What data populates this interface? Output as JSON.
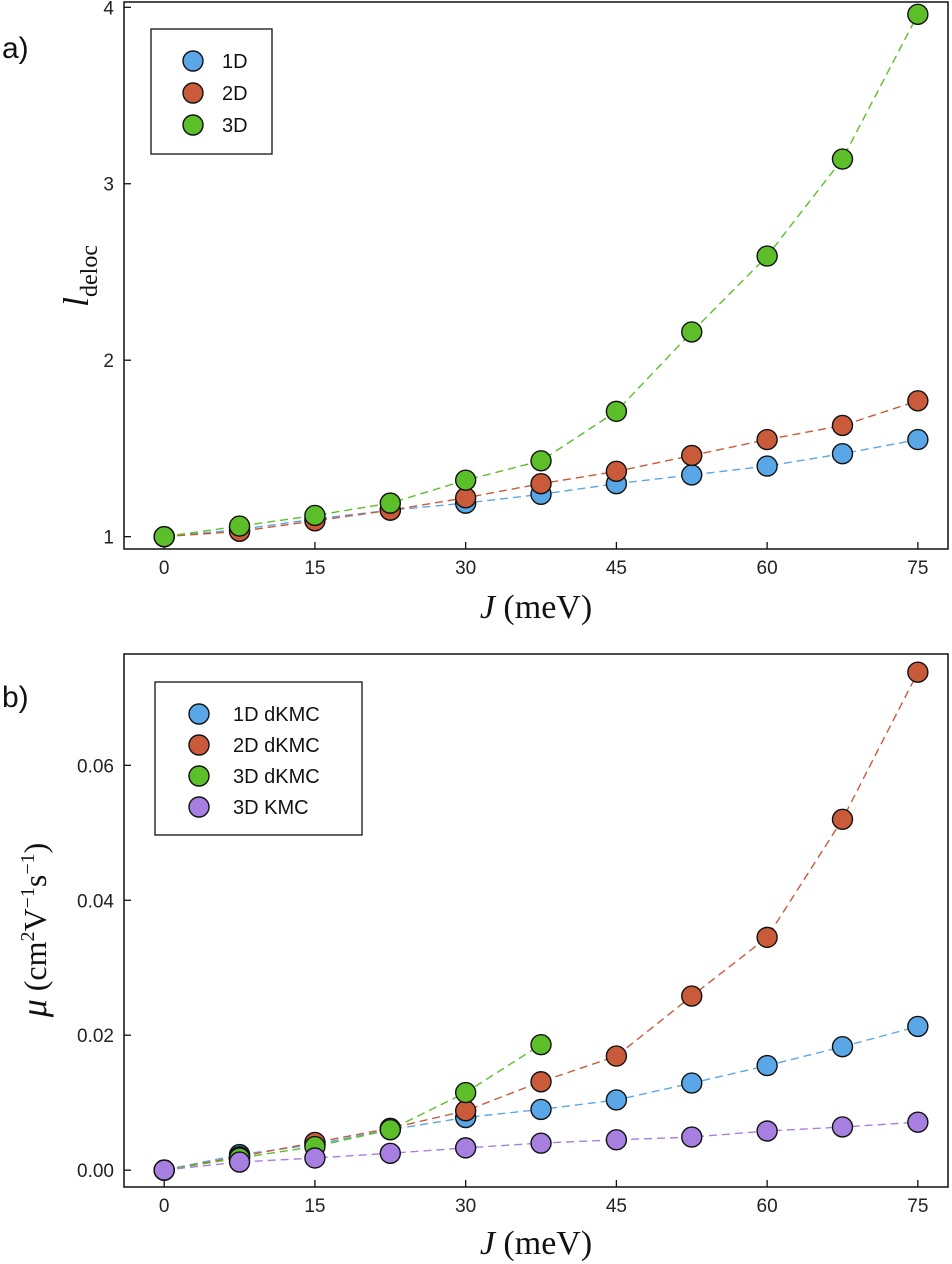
{
  "chart_data": [
    {
      "type": "scatter",
      "panel_label": "a)",
      "xlabel": "J (meV)",
      "ylabel": "l_deloc",
      "xlim": [
        -4,
        78
      ],
      "ylim": [
        0.93,
        4.03
      ],
      "xticks": [
        0,
        15,
        30,
        45,
        60,
        75
      ],
      "yticks": [
        1,
        2,
        3,
        4
      ],
      "x": [
        0,
        7.5,
        15,
        22.5,
        30,
        37.5,
        45,
        52.5,
        60,
        67.5,
        75
      ],
      "legend_position": "top-left",
      "grid": false,
      "series": [
        {
          "name": "1D",
          "color": "#5aa7e8",
          "values": [
            1.0,
            1.04,
            1.1,
            1.15,
            1.19,
            1.24,
            1.3,
            1.35,
            1.4,
            1.47,
            1.55
          ]
        },
        {
          "name": "2D",
          "color": "#c95a3a",
          "values": [
            1.0,
            1.03,
            1.09,
            1.15,
            1.22,
            1.3,
            1.37,
            1.46,
            1.55,
            1.63,
            1.77
          ]
        },
        {
          "name": "3D",
          "color": "#5cbf2a",
          "values": [
            1.0,
            1.06,
            1.12,
            1.19,
            1.32,
            1.43,
            1.71,
            2.16,
            2.59,
            3.14,
            3.96
          ]
        }
      ]
    },
    {
      "type": "scatter",
      "panel_label": "b)",
      "xlabel": "J (meV)",
      "ylabel": "μ (cm²V⁻¹s⁻¹)",
      "xlim": [
        -4,
        78
      ],
      "ylim": [
        -0.0025,
        0.0765
      ],
      "xticks": [
        0,
        15,
        30,
        45,
        60,
        75
      ],
      "yticks": [
        0.0,
        0.02,
        0.04,
        0.06
      ],
      "yticklabels": [
        "0.00",
        "0.02",
        "0.04",
        "0.06"
      ],
      "legend_position": "top-left",
      "grid": false,
      "series": [
        {
          "name": "1D dKMC",
          "color": "#5aa7e8",
          "x": [
            0,
            7.5,
            15,
            22.5,
            30,
            37.5,
            45,
            52.5,
            60,
            67.5,
            75
          ],
          "values": [
            0.0,
            0.0023,
            0.0038,
            0.006,
            0.0078,
            0.009,
            0.0104,
            0.0129,
            0.0155,
            0.0183,
            0.0213
          ]
        },
        {
          "name": "2D dKMC",
          "color": "#c95a3a",
          "x": [
            0,
            7.5,
            15,
            22.5,
            30,
            37.5,
            45,
            52.5,
            60,
            67.5,
            75
          ],
          "values": [
            0.0,
            0.002,
            0.0041,
            0.0062,
            0.0088,
            0.0131,
            0.0169,
            0.0258,
            0.0345,
            0.052,
            0.0738
          ]
        },
        {
          "name": "3D dKMC",
          "color": "#5cbf2a",
          "x": [
            0,
            7.5,
            15,
            22.5,
            30,
            37.5
          ],
          "values": [
            0.0,
            0.0018,
            0.0035,
            0.006,
            0.0115,
            0.0186
          ]
        },
        {
          "name": "3D KMC",
          "color": "#a77fe0",
          "x": [
            0,
            7.5,
            15,
            22.5,
            30,
            37.5,
            45,
            52.5,
            60,
            67.5,
            75
          ],
          "values": [
            0.0,
            0.0012,
            0.0018,
            0.0025,
            0.0033,
            0.004,
            0.0045,
            0.0049,
            0.0058,
            0.0064,
            0.0071
          ]
        }
      ]
    }
  ]
}
